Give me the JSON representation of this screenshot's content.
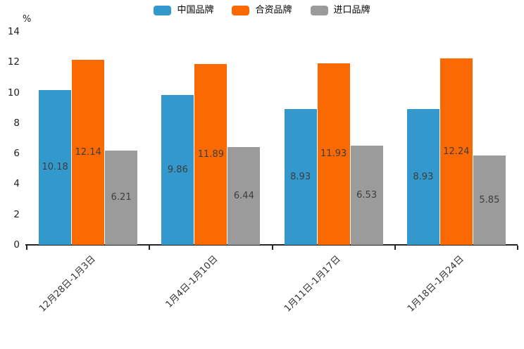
{
  "chart_data": {
    "type": "bar",
    "title": "",
    "ylabel": "%",
    "xlabel": "",
    "ylim": [
      0,
      14
    ],
    "ytick_step": 2,
    "grid": false,
    "legend_position": "top",
    "categories": [
      "12月28日-1月3日",
      "1月4日-1月10日",
      "1月11日-1月17日",
      "1月18日-1月24日"
    ],
    "series": [
      {
        "name": "中国品牌",
        "color": "#3398CB",
        "values": [
          10.18,
          9.86,
          8.93,
          8.93
        ]
      },
      {
        "name": "合资品牌",
        "color": "#FB6A02",
        "values": [
          12.14,
          11.89,
          11.93,
          12.24
        ]
      },
      {
        "name": "进口品牌",
        "color": "#9B9B9B",
        "values": [
          6.21,
          6.44,
          6.53,
          5.85
        ]
      }
    ],
    "axis_color": "#262626",
    "bar_label_color": "#3d3d3d"
  }
}
